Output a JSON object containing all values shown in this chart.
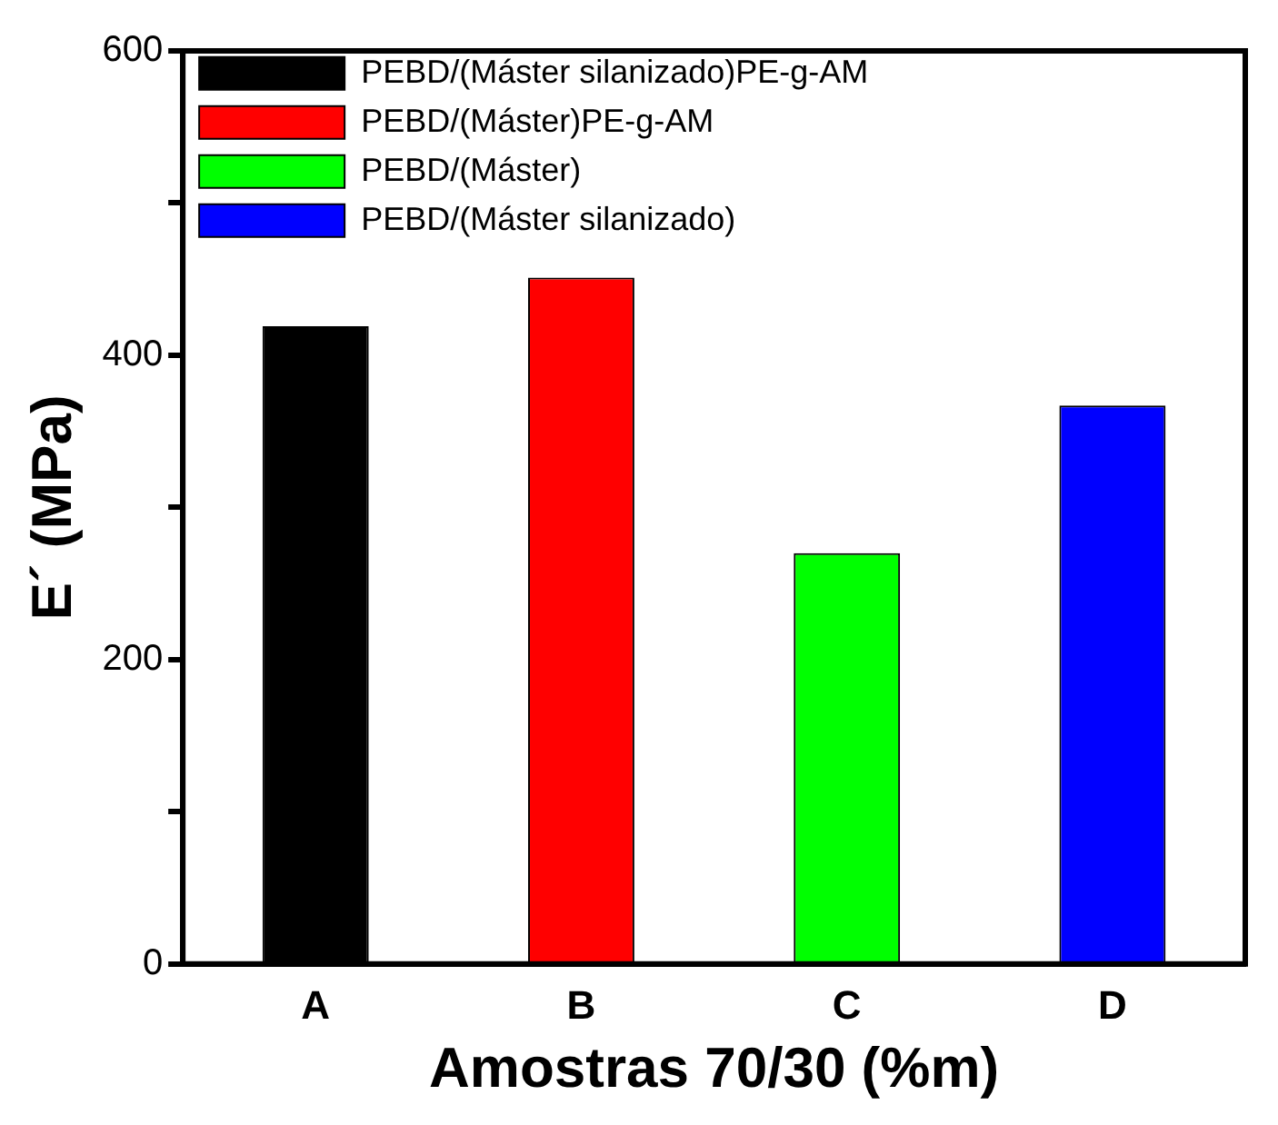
{
  "chart_data": {
    "type": "bar",
    "xlabel": "Amostras 70/30 (%m)",
    "ylabel": "E´ (MPa)",
    "categories": [
      "A",
      "B",
      "C",
      "D"
    ],
    "series": [
      {
        "name": "PEBD/(Máster silanizado)PE-g-AM",
        "color": "#000000",
        "values": [
          419,
          null,
          null,
          null
        ]
      },
      {
        "name": "PEBD/(Máster)PE-g-AM",
        "color": "#ff0000",
        "values": [
          null,
          451,
          null,
          null
        ]
      },
      {
        "name": "PEBD/(Máster)",
        "color": "#00ff00",
        "values": [
          null,
          null,
          270,
          null
        ]
      },
      {
        "name": "PEBD/(Máster silanizado)",
        "color": "#0000ff",
        "values": [
          null,
          null,
          null,
          367
        ]
      }
    ],
    "ylim": [
      0,
      600
    ],
    "yticks": [
      0,
      {
        "value": 100,
        "label": null
      },
      200,
      {
        "value": 300,
        "label": null
      },
      400,
      {
        "value": 500,
        "label": null
      },
      600
    ],
    "grid": false,
    "legend": "top left"
  }
}
